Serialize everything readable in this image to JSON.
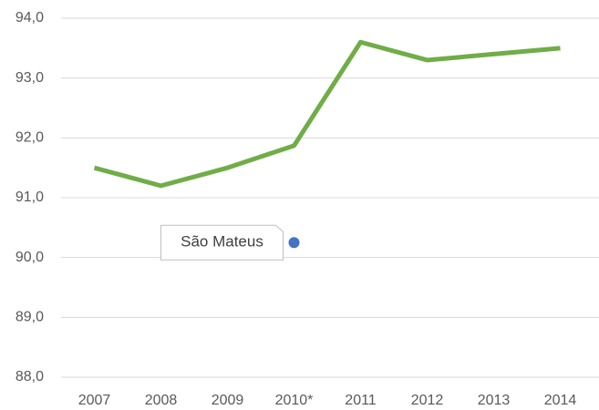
{
  "chart_data": {
    "type": "line",
    "categories": [
      "2007",
      "2008",
      "2009",
      "2010*",
      "2011",
      "2012",
      "2013",
      "2014"
    ],
    "series": [
      {
        "color": "#70ad47",
        "values": [
          91.5,
          91.2,
          91.5,
          91.87,
          93.6,
          93.3,
          93.4,
          93.5
        ]
      },
      {
        "name": "São Mateus",
        "color": "#4472c4",
        "values": [
          null,
          null,
          null,
          90.25,
          null,
          null,
          null,
          null
        ]
      }
    ],
    "ylim": [
      88,
      94
    ],
    "yticks": [
      {
        "value": 88,
        "label": "88,0"
      },
      {
        "value": 89,
        "label": "89,0"
      },
      {
        "value": 90,
        "label": "90,0"
      },
      {
        "value": 91,
        "label": "91,0"
      },
      {
        "value": 92,
        "label": "92,0"
      },
      {
        "value": 93,
        "label": "93,0"
      },
      {
        "value": 94,
        "label": "94,0"
      }
    ],
    "grid": true
  }
}
